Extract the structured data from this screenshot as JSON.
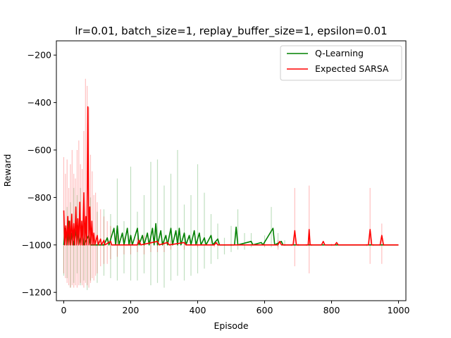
{
  "chart_data": {
    "type": "line",
    "title": "lr=0.01, batch_size=1, replay_buffer_size=1, epsilon=0.01",
    "xlabel": "Episode",
    "ylabel": "Reward",
    "xlim": [
      -22,
      1022
    ],
    "ylim": [
      -1235,
      -140
    ],
    "xticks": [
      0,
      200,
      400,
      600,
      800,
      1000
    ],
    "yticks": [
      -1200,
      -1000,
      -800,
      -600,
      -400,
      -200
    ],
    "grid": false,
    "legend_position": "top-right",
    "series": [
      {
        "name": "Q-Learning",
        "color": "#008000",
        "mean_points": [
          [
            0,
            -1000
          ],
          [
            5,
            -930
          ],
          [
            10,
            -1000
          ],
          [
            15,
            -900
          ],
          [
            20,
            -1000
          ],
          [
            25,
            -950
          ],
          [
            30,
            -1000
          ],
          [
            40,
            -920
          ],
          [
            45,
            -1000
          ],
          [
            55,
            -940
          ],
          [
            60,
            -1000
          ],
          [
            75,
            -960
          ],
          [
            80,
            -1000
          ],
          [
            120,
            -1000
          ],
          [
            130,
            -970
          ],
          [
            135,
            -1000
          ],
          [
            150,
            -930
          ],
          [
            155,
            -1000
          ],
          [
            160,
            -920
          ],
          [
            165,
            -1000
          ],
          [
            175,
            -950
          ],
          [
            180,
            -1000
          ],
          [
            190,
            -930
          ],
          [
            195,
            -1000
          ],
          [
            200,
            -960
          ],
          [
            205,
            -1000
          ],
          [
            220,
            -930
          ],
          [
            225,
            -1000
          ],
          [
            235,
            -960
          ],
          [
            240,
            -1000
          ],
          [
            250,
            -950
          ],
          [
            255,
            -1000
          ],
          [
            265,
            -930
          ],
          [
            270,
            -1000
          ],
          [
            275,
            -910
          ],
          [
            280,
            -1000
          ],
          [
            290,
            -940
          ],
          [
            295,
            -1000
          ],
          [
            305,
            -960
          ],
          [
            310,
            -1000
          ],
          [
            320,
            -930
          ],
          [
            325,
            -1000
          ],
          [
            335,
            -940
          ],
          [
            340,
            -1000
          ],
          [
            345,
            -930
          ],
          [
            350,
            -1000
          ],
          [
            360,
            -950
          ],
          [
            365,
            -1000
          ],
          [
            375,
            -960
          ],
          [
            380,
            -1000
          ],
          [
            390,
            -940
          ],
          [
            395,
            -1000
          ],
          [
            405,
            -950
          ],
          [
            410,
            -1000
          ],
          [
            420,
            -970
          ],
          [
            425,
            -1000
          ],
          [
            440,
            -960
          ],
          [
            445,
            -1000
          ],
          [
            460,
            -975
          ],
          [
            465,
            -1000
          ],
          [
            510,
            -1000
          ],
          [
            515,
            -925
          ],
          [
            520,
            -1000
          ],
          [
            560,
            -985
          ],
          [
            565,
            -1000
          ],
          [
            590,
            -990
          ],
          [
            595,
            -1000
          ],
          [
            625,
            -930
          ],
          [
            630,
            -1000
          ],
          [
            650,
            -985
          ],
          [
            655,
            -1000
          ],
          [
            1000,
            -1000
          ]
        ],
        "band_points": [
          [
            0,
            -1130,
            -870
          ],
          [
            10,
            -1140,
            -840
          ],
          [
            20,
            -1180,
            -820
          ],
          [
            30,
            -1160,
            -760
          ],
          [
            40,
            -1120,
            -790
          ],
          [
            50,
            -1170,
            -760
          ],
          [
            60,
            -1150,
            -780
          ],
          [
            70,
            -1190,
            -750
          ],
          [
            80,
            -1150,
            -800
          ],
          [
            100,
            -1160,
            -860
          ],
          [
            120,
            -1130,
            -850
          ],
          [
            140,
            -1140,
            -870
          ],
          [
            160,
            -1150,
            -720
          ],
          [
            180,
            -1120,
            -900
          ],
          [
            200,
            -1150,
            -670
          ],
          [
            220,
            -1150,
            -860
          ],
          [
            240,
            -1120,
            -790
          ],
          [
            260,
            -1170,
            -650
          ],
          [
            280,
            -1160,
            -640
          ],
          [
            300,
            -1180,
            -750
          ],
          [
            320,
            -1150,
            -700
          ],
          [
            340,
            -1130,
            -600
          ],
          [
            360,
            -1150,
            -830
          ],
          [
            380,
            -1130,
            -790
          ],
          [
            400,
            -1120,
            -660
          ],
          [
            420,
            -1100,
            -780
          ],
          [
            440,
            -1080,
            -870
          ],
          [
            460,
            -1060,
            -910
          ],
          [
            480,
            -1040,
            -970
          ],
          [
            500,
            -1030,
            -920
          ],
          [
            520,
            -1020,
            -850
          ],
          [
            540,
            -1020,
            -950
          ],
          [
            560,
            -1010,
            -950
          ],
          [
            600,
            -1010,
            -960
          ],
          [
            620,
            -1010,
            -840
          ],
          [
            640,
            -1010,
            -950
          ],
          [
            660,
            -1000,
            -980
          ],
          [
            700,
            -1000,
            -995
          ],
          [
            1000,
            -1000,
            -1000
          ]
        ]
      },
      {
        "name": "Expected SARSA",
        "color": "#ff0000",
        "mean_points": [
          [
            0,
            -855
          ],
          [
            3,
            -1000
          ],
          [
            6,
            -920
          ],
          [
            9,
            -1000
          ],
          [
            12,
            -880
          ],
          [
            15,
            -1000
          ],
          [
            18,
            -900
          ],
          [
            21,
            -1000
          ],
          [
            24,
            -870
          ],
          [
            27,
            -1000
          ],
          [
            30,
            -910
          ],
          [
            33,
            -1000
          ],
          [
            36,
            -840
          ],
          [
            39,
            -1000
          ],
          [
            42,
            -890
          ],
          [
            45,
            -1000
          ],
          [
            48,
            -820
          ],
          [
            51,
            -1000
          ],
          [
            54,
            -900
          ],
          [
            57,
            -1000
          ],
          [
            60,
            -780
          ],
          [
            63,
            -1000
          ],
          [
            66,
            -880
          ],
          [
            69,
            -1000
          ],
          [
            72,
            -418
          ],
          [
            75,
            -1000
          ],
          [
            78,
            -840
          ],
          [
            81,
            -1000
          ],
          [
            84,
            -900
          ],
          [
            87,
            -1000
          ],
          [
            90,
            -950
          ],
          [
            93,
            -1000
          ],
          [
            100,
            -960
          ],
          [
            103,
            -1000
          ],
          [
            110,
            -975
          ],
          [
            113,
            -1000
          ],
          [
            120,
            -980
          ],
          [
            123,
            -1000
          ],
          [
            140,
            -985
          ],
          [
            143,
            -1000
          ],
          [
            220,
            -1000
          ],
          [
            225,
            -980
          ],
          [
            230,
            -1000
          ],
          [
            280,
            -985
          ],
          [
            285,
            -1000
          ],
          [
            310,
            -990
          ],
          [
            315,
            -1000
          ],
          [
            360,
            -990
          ],
          [
            365,
            -1000
          ],
          [
            450,
            -1000
          ],
          [
            455,
            -990
          ],
          [
            460,
            -1000
          ],
          [
            640,
            -1000
          ],
          [
            645,
            -985
          ],
          [
            650,
            -1000
          ],
          [
            685,
            -1000
          ],
          [
            690,
            -940
          ],
          [
            695,
            -1000
          ],
          [
            730,
            -1000
          ],
          [
            733,
            -935
          ],
          [
            736,
            -1000
          ],
          [
            770,
            -1000
          ],
          [
            775,
            -985
          ],
          [
            780,
            -1000
          ],
          [
            810,
            -1000
          ],
          [
            815,
            -990
          ],
          [
            820,
            -1000
          ],
          [
            910,
            -1000
          ],
          [
            915,
            -935
          ],
          [
            920,
            -1000
          ],
          [
            945,
            -1000
          ],
          [
            950,
            -960
          ],
          [
            955,
            -1000
          ],
          [
            1000,
            -1000
          ]
        ],
        "band_points": [
          [
            0,
            -1120,
            -630
          ],
          [
            5,
            -1140,
            -700
          ],
          [
            10,
            -1160,
            -640
          ],
          [
            15,
            -1170,
            -760
          ],
          [
            20,
            -1180,
            -660
          ],
          [
            25,
            -1170,
            -600
          ],
          [
            30,
            -1180,
            -700
          ],
          [
            35,
            -1170,
            -720
          ],
          [
            40,
            -1180,
            -600
          ],
          [
            45,
            -1170,
            -560
          ],
          [
            50,
            -1160,
            -660
          ],
          [
            55,
            -1170,
            -680
          ],
          [
            60,
            -1180,
            -520
          ],
          [
            65,
            -1160,
            -300
          ],
          [
            70,
            -1170,
            -330
          ],
          [
            75,
            -1180,
            -420
          ],
          [
            80,
            -1160,
            -620
          ],
          [
            85,
            -1140,
            -690
          ],
          [
            90,
            -1150,
            -790
          ],
          [
            95,
            -1130,
            -780
          ],
          [
            100,
            -1120,
            -820
          ],
          [
            110,
            -1090,
            -850
          ],
          [
            120,
            -1080,
            -880
          ],
          [
            130,
            -1080,
            -900
          ],
          [
            140,
            -1060,
            -920
          ],
          [
            160,
            -1050,
            -960
          ],
          [
            180,
            -1040,
            -970
          ],
          [
            200,
            -1040,
            -970
          ],
          [
            220,
            -1030,
            -970
          ],
          [
            240,
            -1040,
            -960
          ],
          [
            260,
            -1030,
            -970
          ],
          [
            280,
            -1030,
            -980
          ],
          [
            300,
            -1030,
            -980
          ],
          [
            320,
            -1020,
            -980
          ],
          [
            360,
            -1020,
            -990
          ],
          [
            400,
            -1010,
            -990
          ],
          [
            450,
            -1010,
            -990
          ],
          [
            500,
            -1005,
            -995
          ],
          [
            600,
            -1005,
            -995
          ],
          [
            640,
            -1020,
            -980
          ],
          [
            660,
            -1005,
            -995
          ],
          [
            680,
            -1005,
            -995
          ],
          [
            690,
            -1090,
            -760
          ],
          [
            700,
            -1005,
            -995
          ],
          [
            725,
            -1005,
            -995
          ],
          [
            733,
            -1120,
            -750
          ],
          [
            740,
            -1005,
            -995
          ],
          [
            800,
            -1005,
            -995
          ],
          [
            905,
            -1005,
            -995
          ],
          [
            915,
            -1080,
            -760
          ],
          [
            925,
            -1005,
            -995
          ],
          [
            945,
            -1005,
            -995
          ],
          [
            950,
            -1080,
            -910
          ],
          [
            955,
            -1005,
            -995
          ],
          [
            1000,
            -1000,
            -1000
          ]
        ]
      }
    ]
  }
}
